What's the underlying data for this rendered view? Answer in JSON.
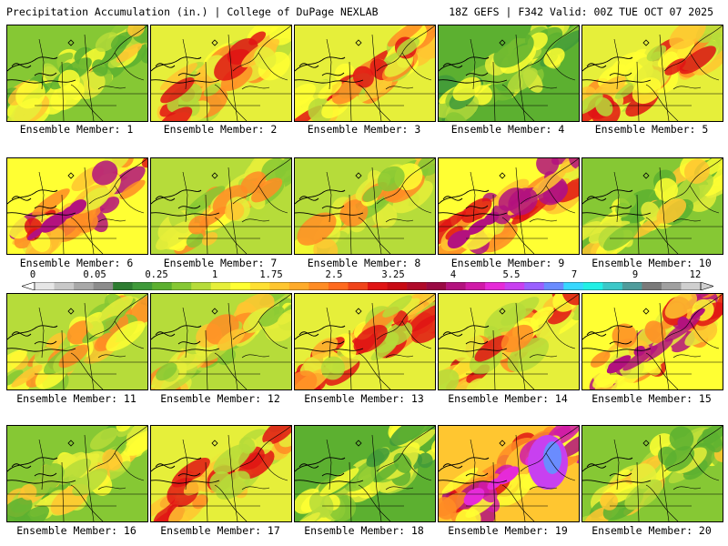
{
  "header": {
    "left_title": "Precipitation Accumulation (in.) | College of DuPage NEXLAB",
    "right_title": "18Z GEFS | F342 Valid: 00Z TUE OCT 07 2025"
  },
  "colorbar": {
    "labels": [
      "0",
      "0.05",
      "0.25",
      "1",
      "1.75",
      "2.5",
      "3.25",
      "4",
      "5.5",
      "7",
      "9",
      "12"
    ],
    "colors": [
      "#e6e6e6",
      "#c8c8c8",
      "#a8a8a8",
      "#8c8c8c",
      "#2e7d32",
      "#3f9a3a",
      "#5cb030",
      "#86c834",
      "#b6dc3a",
      "#e6ef3a",
      "#ffff33",
      "#ffe033",
      "#ffc630",
      "#ffab2a",
      "#ff8c24",
      "#ff6a1e",
      "#f0441a",
      "#e01414",
      "#c80a14",
      "#b00a2a",
      "#9a0a44",
      "#b3127e",
      "#d01aa8",
      "#e62ad8",
      "#c840f0",
      "#9a60ff",
      "#6a8cff",
      "#38d8ff",
      "#22f0e6",
      "#3cc8c8",
      "#509c9c",
      "#7a7a7a",
      "#a0a0a0",
      "#cfcfcf"
    ]
  },
  "members": [
    {
      "caption": "Ensemble Member: 1",
      "pattern": 1
    },
    {
      "caption": "Ensemble Member: 2",
      "pattern": 2
    },
    {
      "caption": "Ensemble Member: 3",
      "pattern": 3
    },
    {
      "caption": "Ensemble Member: 4",
      "pattern": 4
    },
    {
      "caption": "Ensemble Member: 5",
      "pattern": 5
    },
    {
      "caption": "Ensemble Member: 6",
      "pattern": 6
    },
    {
      "caption": "Ensemble Member: 7",
      "pattern": 7
    },
    {
      "caption": "Ensemble Member: 8",
      "pattern": 8
    },
    {
      "caption": "Ensemble Member: 9",
      "pattern": 9
    },
    {
      "caption": "Ensemble Member: 10",
      "pattern": 10
    },
    {
      "caption": "Ensemble Member: 11",
      "pattern": 11
    },
    {
      "caption": "Ensemble Member: 12",
      "pattern": 12
    },
    {
      "caption": "Ensemble Member: 13",
      "pattern": 13
    },
    {
      "caption": "Ensemble Member: 14",
      "pattern": 14
    },
    {
      "caption": "Ensemble Member: 15",
      "pattern": 15
    },
    {
      "caption": "Ensemble Member: 16",
      "pattern": 16
    },
    {
      "caption": "Ensemble Member: 17",
      "pattern": 17
    },
    {
      "caption": "Ensemble Member: 18",
      "pattern": 18
    },
    {
      "caption": "Ensemble Member: 19",
      "pattern": 19
    },
    {
      "caption": "Ensemble Member: 20",
      "pattern": 20
    }
  ]
}
